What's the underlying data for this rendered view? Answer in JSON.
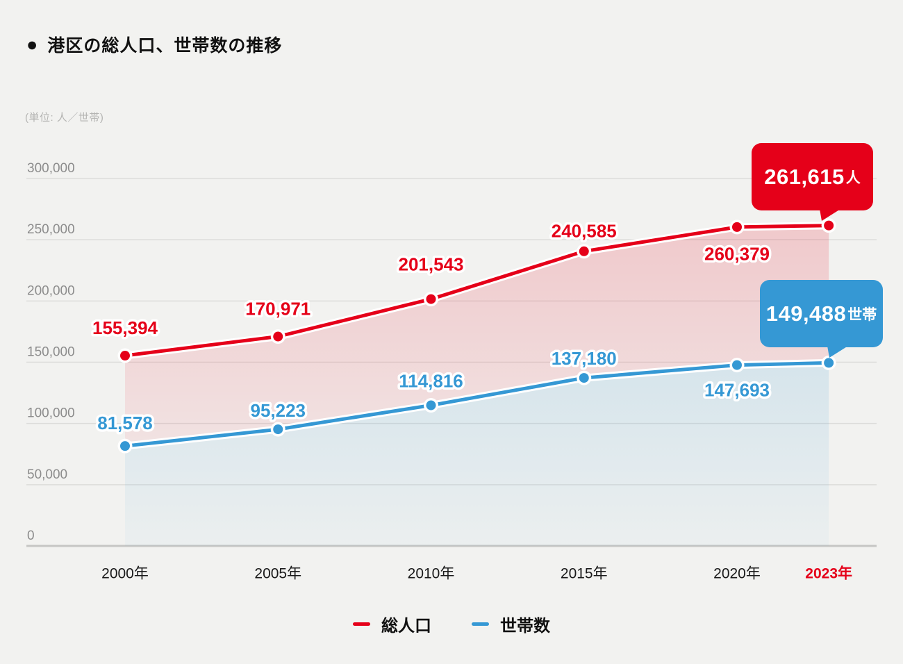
{
  "page": {
    "title": "港区の総人口、世帯数の推移",
    "title_bullet": "●",
    "unit_label": "(単位: 人／世帯)"
  },
  "colors": {
    "background": "#f2f2f0",
    "population_red": "#e50019",
    "households_blue": "#3598d4",
    "gridline": "#dcdcda",
    "baseline": "#c6c6c4",
    "ytick_text": "#8c8c8c",
    "xtick_text": "#1a1a1a",
    "xtick_highlight_text": "#e50019",
    "unit_text": "#b4b4b2",
    "callout_text": "#ffffff"
  },
  "chart_data": {
    "type": "line",
    "title": "港区の総人口、世帯数の推移",
    "unit_label": "(単位: 人／世帯)",
    "categories": [
      "2000年",
      "2005年",
      "2010年",
      "2015年",
      "2020年",
      "2023年"
    ],
    "x_years": [
      2000,
      2005,
      2010,
      2015,
      2020,
      2023
    ],
    "xtick_highlight_index": 5,
    "series": [
      {
        "id": "population",
        "name": "総人口",
        "color": "#e50019",
        "values": [
          155394,
          170971,
          201543,
          240585,
          260379,
          261615
        ],
        "point_labels": [
          "155,394",
          "170,971",
          "201,543",
          "240,585",
          "260,379"
        ],
        "callout": {
          "text": "261,615",
          "suffix": "人"
        }
      },
      {
        "id": "households",
        "name": "世帯数",
        "color": "#3598d4",
        "values": [
          81578,
          95223,
          114816,
          137180,
          147693,
          149488
        ],
        "point_labels": [
          "81,578",
          "95,223",
          "114,816",
          "137,180",
          "147,693"
        ],
        "callout": {
          "text": "149,488",
          "suffix": "世帯"
        }
      }
    ],
    "ylim": [
      0,
      300000
    ],
    "yticks": [
      {
        "label": "0",
        "value": 0
      },
      {
        "label": "50,000",
        "value": 50000
      },
      {
        "label": "100,000",
        "value": 100000
      },
      {
        "label": "150,000",
        "value": 150000
      },
      {
        "label": "200,000",
        "value": 200000
      },
      {
        "label": "250,000",
        "value": 250000
      },
      {
        "label": "300,000",
        "value": 300000
      }
    ],
    "grid": true,
    "legend_position": "bottom"
  }
}
